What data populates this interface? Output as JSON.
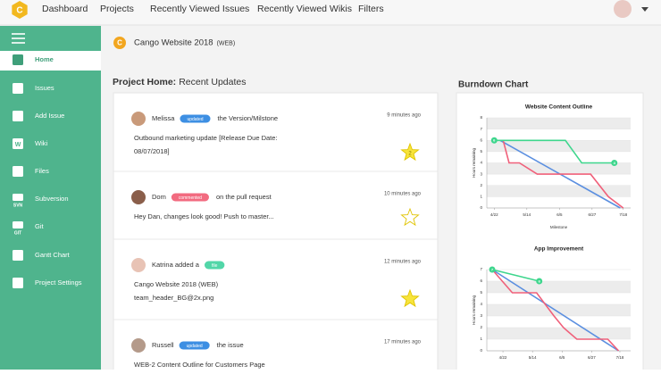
{
  "nav": {
    "logo": "C",
    "items": [
      "Dashboard",
      "Projects",
      "Recently Viewed Issues",
      "Recently Viewed Wikis",
      "Filters"
    ]
  },
  "sidebar": {
    "items": [
      {
        "label": "Home"
      },
      {
        "label": "Issues"
      },
      {
        "label": "Add Issue"
      },
      {
        "label": "Wiki",
        "icon_text": "W"
      },
      {
        "label": "Files"
      },
      {
        "label": "Subversion",
        "icon_text": "SVN"
      },
      {
        "label": "Git",
        "icon_text": "GIT"
      },
      {
        "label": "Gantt Chart"
      },
      {
        "label": "Project Settings"
      }
    ],
    "active": 0
  },
  "project": {
    "logo": "C",
    "name": "Cango Website 2018",
    "key": "(WEB)"
  },
  "updates": {
    "heading_bold": "Project Home:",
    "heading": "Recent Updates",
    "items": [
      {
        "user": "Melissa",
        "badge": "updated",
        "badge_color": "#3d8fe3",
        "action": "the Version/Milstone",
        "time": "9 minutes ago",
        "lines": [
          "Outbound marketing update [Release Due Date:",
          "08/07/2018]"
        ],
        "starred": true,
        "stars": 2
      },
      {
        "user": "Dom",
        "badge": "commented",
        "badge_color": "#f26b80",
        "action": "on the pull request",
        "time": "10 minutes ago",
        "lines": [
          "Hey Dan, changes look good!  Push to master..."
        ],
        "starred": false
      },
      {
        "user": "Katrina added a",
        "badge": "file",
        "badge_color": "#52d6a8",
        "time": "12 minutes ago",
        "lines": [
          "Cango Website 2018 (WEB)",
          "team_header_BG@2x.png"
        ],
        "starred": true
      },
      {
        "user": "Russell",
        "badge": "updated",
        "badge_color": "#3d8fe3",
        "action": "the issue",
        "time": "17 minutes ago",
        "lines": [
          "WEB-2 Content Outline for Customers Page"
        ]
      }
    ]
  },
  "burndown": {
    "title": "Burndown Chart"
  },
  "chart_data": [
    {
      "type": "line",
      "title": "Website Content Outline",
      "xlabel": "Milestone",
      "ylabel": "Hours remaining",
      "grid": true,
      "xlim": [
        -5,
        92
      ],
      "xticks": [
        {
          "value": 0,
          "label": "4/22"
        },
        {
          "value": 22,
          "label": "5/14"
        },
        {
          "value": 44,
          "label": "6/5"
        },
        {
          "value": 66,
          "label": "6/27"
        },
        {
          "value": 87,
          "label": "7/18"
        }
      ],
      "ylim": [
        0,
        8
      ],
      "yticks": [
        0,
        1,
        2,
        3,
        4,
        5,
        6,
        7,
        8
      ],
      "series": [
        {
          "color": "#5b8fe0",
          "x": [
            4,
            85
          ],
          "values": [
            6,
            0
          ]
        },
        {
          "color": "#f0607a",
          "x": [
            6,
            10,
            17,
            29,
            65,
            77,
            87
          ],
          "values": [
            6,
            4,
            4,
            3,
            3,
            1,
            0
          ]
        },
        {
          "color": "#3ed68d",
          "x": [
            0,
            48,
            59,
            81
          ],
          "values": [
            6,
            6,
            4,
            4
          ],
          "end_labels": true
        }
      ]
    },
    {
      "type": "line",
      "title": "App Improvement",
      "ylabel": "Hours remaining",
      "grid": true,
      "xlim": [
        -12,
        95
      ],
      "xticks": [
        {
          "value": 0,
          "label": "4/22"
        },
        {
          "value": 22,
          "label": "5/14"
        },
        {
          "value": 44,
          "label": "6/5"
        },
        {
          "value": 66,
          "label": "6/27"
        },
        {
          "value": 87,
          "label": "7/18"
        }
      ],
      "ylim": [
        0,
        7
      ],
      "yticks": [
        0,
        1,
        2,
        3,
        4,
        5,
        6,
        7
      ],
      "series": [
        {
          "color": "#5b8fe0",
          "x": [
            -8,
            86
          ],
          "values": [
            7,
            0
          ]
        },
        {
          "color": "#f0607a",
          "x": [
            -8,
            7,
            25,
            38,
            45,
            55,
            78,
            86
          ],
          "values": [
            7,
            5,
            5,
            3,
            2,
            1,
            1,
            0
          ]
        },
        {
          "color": "#3ed68d",
          "x": [
            -8,
            27
          ],
          "values": [
            7,
            6
          ],
          "end_labels": true
        }
      ]
    }
  ]
}
